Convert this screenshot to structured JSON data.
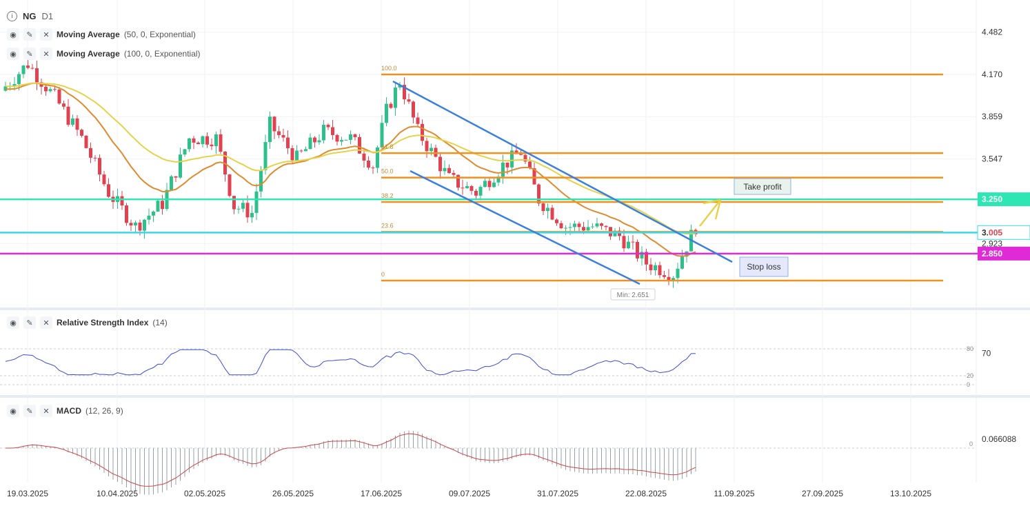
{
  "symbol": "NG",
  "timeframe": "D1",
  "indicators": {
    "ma50": {
      "name": "Moving Average",
      "params": "(50, 0, Exponential)",
      "color": "#e08a2e"
    },
    "ma100": {
      "name": "Moving Average",
      "params": "(100, 0, Exponential)",
      "color": "#e6d24a"
    },
    "rsi": {
      "name": "Relative Strength Index",
      "params": "(14)",
      "levels": [
        "80",
        "70",
        "20",
        "0"
      ]
    },
    "macd": {
      "name": "MACD",
      "params": "(12, 26, 9)",
      "value": "0.066088",
      "zero": "0"
    }
  },
  "price_axis": {
    "ticks": [
      "4.482",
      "4.170",
      "3.859",
      "3.547",
      "3.250",
      "2.923"
    ],
    "current": "3.005",
    "current_prefix": "3.",
    "current_suffix": "005"
  },
  "levels": [
    {
      "label": "3.250",
      "value": 3.25,
      "color": "#2ee6b4"
    },
    {
      "label": "2.850",
      "value": 2.85,
      "color": "#e02ad8"
    },
    {
      "label": "",
      "value": 3.005,
      "color": "#38d8ea"
    }
  ],
  "fibonacci": {
    "high": 4.17,
    "low": 2.651,
    "color": "#f0901e",
    "levels": [
      {
        "label": "100.0",
        "value": 4.17
      },
      {
        "label": "61.8",
        "value": 3.59
      },
      {
        "label": "50.0",
        "value": 3.41
      },
      {
        "label": "38.2",
        "value": 3.23
      },
      {
        "label": "23.6",
        "value": 3.01
      },
      {
        "label": "0",
        "value": 2.651
      }
    ]
  },
  "annotations": {
    "take_profit": "Take profit",
    "stop_loss": "Stop loss",
    "min_label": "Min: 2.651"
  },
  "x_axis": {
    "dates": [
      "19.03.2025",
      "10.04.2025",
      "02.05.2025",
      "26.05.2025",
      "17.06.2025",
      "09.07.2025",
      "31.07.2025",
      "22.08.2025",
      "11.09.2025",
      "27.09.2025",
      "13.10.2025"
    ]
  },
  "chart_data": {
    "type": "candlestick",
    "series": [
      {
        "name": "NG",
        "ohlc_note": "synthetic approximation"
      }
    ],
    "price_range": [
      2.55,
      4.6
    ],
    "ma_periods": [
      50,
      100
    ],
    "rsi_range": [
      0,
      100
    ],
    "macd_zero": 0
  }
}
